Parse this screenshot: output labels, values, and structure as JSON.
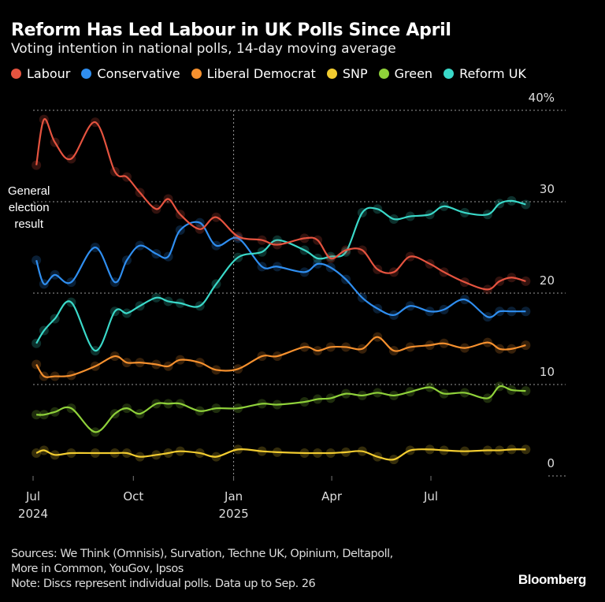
{
  "header": {
    "title": "Reform Has Led Labour in UK Polls Since April",
    "subtitle": "Voting intention in national polls, 14-day moving average"
  },
  "annotation": {
    "line1": "General",
    "line2": "election",
    "line3": "result"
  },
  "footer": {
    "sources_line1": "Sources: We Think (Omnisis), Survation, Techne UK, Opinium, Deltapoll,",
    "sources_line2": "More in Common, YouGov, Ipsos",
    "note": "Note: Discs represent individual polls. Data up to Sep. 26",
    "brand": "Bloomberg"
  },
  "chart_data": {
    "type": "line",
    "title": "Reform Has Led Labour in UK Polls Since April",
    "subtitle": "Voting intention in national polls, 14-day moving average",
    "xlabel": "",
    "ylabel": "",
    "ylim": [
      0,
      40
    ],
    "yticks": [
      {
        "v": 40,
        "label": "40%"
      },
      {
        "v": 30,
        "label": "30"
      },
      {
        "v": 20,
        "label": "20"
      },
      {
        "v": 10,
        "label": "10"
      },
      {
        "v": 0,
        "label": "0"
      }
    ],
    "xticks": [
      {
        "date": "2024-07-01",
        "label": "Jul",
        "sub": "2024"
      },
      {
        "date": "2024-10-01",
        "label": "Oct",
        "sub": ""
      },
      {
        "date": "2025-01-01",
        "label": "Jan",
        "sub": "2025"
      },
      {
        "date": "2025-04-01",
        "label": "Apr",
        "sub": ""
      },
      {
        "date": "2025-07-01",
        "label": "Jul",
        "sub": ""
      }
    ],
    "grid": true,
    "legend_placement": "top",
    "x": [
      "2024-07-04",
      "2024-07-11",
      "2024-07-21",
      "2024-08-05",
      "2024-08-27",
      "2024-09-14",
      "2024-09-25",
      "2024-10-07",
      "2024-10-22",
      "2024-11-02",
      "2024-11-13",
      "2024-12-01",
      "2024-12-16",
      "2025-01-05",
      "2025-01-27",
      "2025-02-10",
      "2025-03-07",
      "2025-03-19",
      "2025-03-31",
      "2025-04-14",
      "2025-04-29",
      "2025-05-13",
      "2025-05-28",
      "2025-06-12",
      "2025-06-30",
      "2025-07-13",
      "2025-08-01",
      "2025-08-22",
      "2025-09-02",
      "2025-09-13",
      "2025-09-26"
    ],
    "series": [
      {
        "name": "Labour",
        "color": "#e5533f",
        "values": [
          34,
          39,
          36.5,
          34.7,
          38.7,
          33.3,
          32.7,
          31,
          29.2,
          30.3,
          28.6,
          27,
          28.3,
          26.2,
          25.8,
          25.3,
          26,
          25.8,
          23.8,
          24.7,
          24.7,
          22.6,
          22.3,
          24,
          23.2,
          22.3,
          21.2,
          20.4,
          21.3,
          21.7,
          21.3
        ]
      },
      {
        "name": "Conservative",
        "color": "#2f8ef0",
        "values": [
          23.6,
          21,
          22,
          21.2,
          25,
          21.2,
          23.6,
          25.2,
          24.3,
          24,
          26.9,
          27.7,
          25.2,
          26,
          22.9,
          22.9,
          22.3,
          23.2,
          22.8,
          21.5,
          19.5,
          18.3,
          17.6,
          18.6,
          18,
          18.2,
          19.3,
          17.4,
          18,
          18,
          18
        ]
      },
      {
        "name": "Liberal Democrat",
        "color": "#f5902e",
        "values": [
          12.2,
          10.9,
          10.9,
          11,
          12,
          13.1,
          12.4,
          12.4,
          12.2,
          12,
          12.7,
          12.4,
          11.6,
          11.7,
          13.1,
          13.1,
          14.1,
          13.7,
          14.1,
          14.1,
          13.9,
          15.2,
          13.7,
          14.1,
          14.3,
          14.5,
          14,
          14.6,
          13.9,
          13.9,
          14.3
        ]
      },
      {
        "name": "SNP",
        "color": "#f2cc30",
        "values": [
          2.5,
          2.8,
          2.3,
          2.5,
          2.5,
          2.5,
          2.5,
          2.1,
          2.3,
          2.5,
          2.7,
          2.5,
          2.1,
          2.9,
          2.7,
          2.6,
          2.5,
          2.5,
          2.5,
          2.6,
          2.7,
          2.1,
          1.8,
          2.8,
          2.9,
          2.8,
          2.7,
          2.8,
          2.8,
          2.9,
          2.9
        ]
      },
      {
        "name": "Green",
        "color": "#8fd13a",
        "values": [
          6.7,
          6.7,
          7,
          7.4,
          4.8,
          6.8,
          7.4,
          6.8,
          7.9,
          7.9,
          7.9,
          7.1,
          7.4,
          7.4,
          7.9,
          7.8,
          8.1,
          8.4,
          8.5,
          9,
          8.8,
          9.1,
          8.8,
          9.2,
          9.7,
          9,
          9.1,
          8.5,
          9.8,
          9.4,
          9.3
        ]
      },
      {
        "name": "Reform UK",
        "color": "#3ad9c9",
        "values": [
          14.5,
          15.9,
          17.2,
          19,
          13.7,
          18,
          17.8,
          18.6,
          19.5,
          19.1,
          18.9,
          18.6,
          21,
          23.9,
          24.5,
          25.8,
          24.7,
          23.8,
          24,
          24.5,
          28.8,
          29.2,
          28.1,
          28.4,
          28.6,
          29.5,
          28.8,
          28.6,
          29.8,
          30.1,
          29.7
        ]
      }
    ]
  }
}
